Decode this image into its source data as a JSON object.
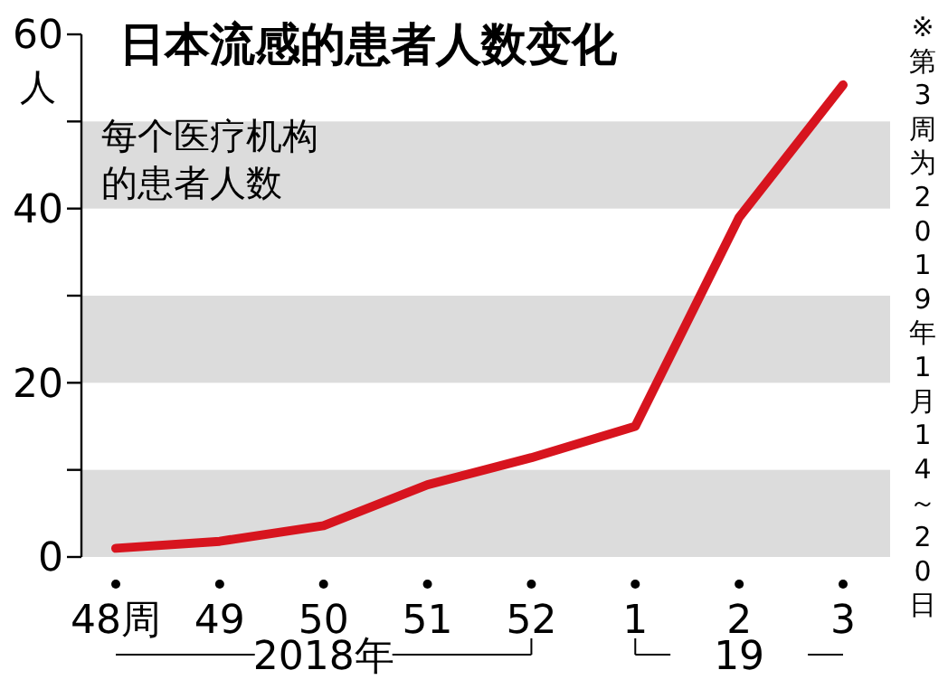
{
  "chart_data": {
    "type": "line",
    "title": "日本流感的患者人数变化",
    "ylabel": "人",
    "categories": [
      "48周",
      "49",
      "50",
      "51",
      "52",
      "1",
      "2",
      "3"
    ],
    "series": [
      {
        "color": "#d7141e",
        "values": [
          1,
          1.8,
          3.6,
          8.3,
          11.4,
          15,
          39,
          54.2
        ]
      }
    ],
    "ylim": [
      0,
      60
    ],
    "yticks": [
      0,
      {
        "value": 10,
        "label": null
      },
      20,
      {
        "value": 30,
        "label": null
      },
      40,
      {
        "value": 50,
        "label": null
      },
      60
    ],
    "bands": [
      {
        "axis": "y",
        "from": 0,
        "to": 10,
        "color": "#dcdcdc"
      },
      {
        "axis": "y",
        "from": 20,
        "to": 30,
        "color": "#dcdcdc"
      },
      {
        "axis": "y",
        "from": 40,
        "to": 50,
        "color": "#dcdcdc"
      }
    ],
    "grid": false,
    "marker": "none",
    "line_style": "solid",
    "annotations": [
      "每个医疗机构的患者人数",
      "※第3周为2019年1月14～20日",
      "2018年",
      "19"
    ]
  }
}
